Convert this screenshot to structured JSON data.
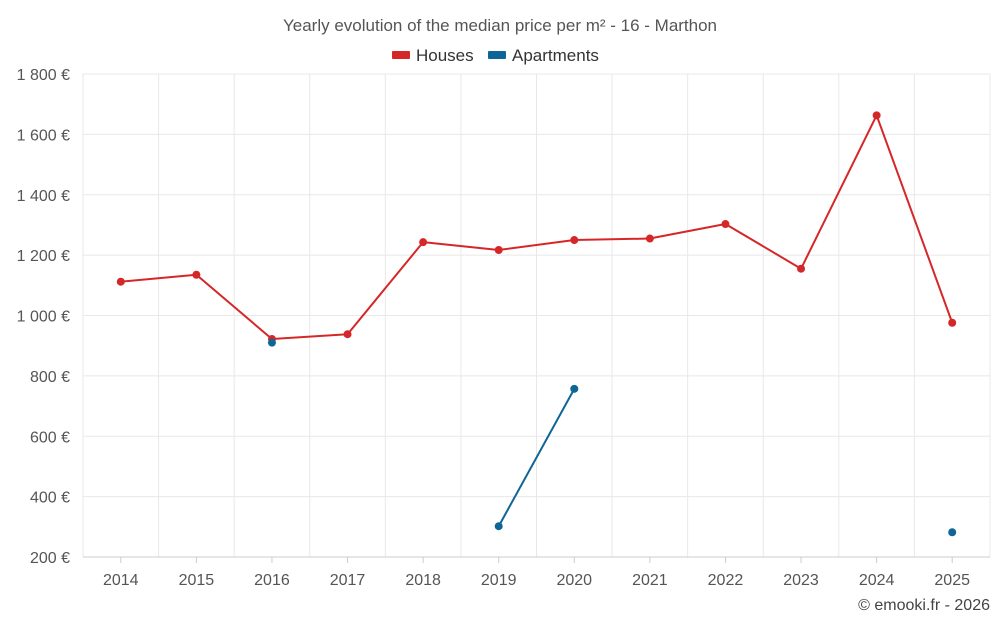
{
  "chart_data": {
    "type": "line",
    "title": "Yearly evolution of the median price per m² - 16 - Marthon",
    "x": [
      "2014",
      "2015",
      "2016",
      "2017",
      "2018",
      "2019",
      "2020",
      "2021",
      "2022",
      "2023",
      "2024",
      "2025"
    ],
    "ylim": [
      200,
      1800
    ],
    "yticks": [
      200,
      400,
      600,
      800,
      1000,
      1200,
      1400,
      1600,
      1800
    ],
    "ytick_labels": [
      "200 €",
      "400 €",
      "600 €",
      "800 €",
      "1 000 €",
      "1 200 €",
      "1 400 €",
      "1 600 €",
      "1 800 €"
    ],
    "grid": true,
    "legend_position": "top-center",
    "series": [
      {
        "name": "Houses",
        "color": "#d62728",
        "values": [
          1112,
          1135,
          922,
          938,
          1243,
          1217,
          1250,
          1255,
          1303,
          1155,
          1663,
          976
        ]
      },
      {
        "name": "Apartments",
        "color": "#0e6696",
        "values": [
          null,
          null,
          910,
          null,
          null,
          302,
          757,
          null,
          null,
          null,
          null,
          282
        ]
      }
    ]
  },
  "footer": {
    "copyright": "© emooki.fr - 2026"
  }
}
